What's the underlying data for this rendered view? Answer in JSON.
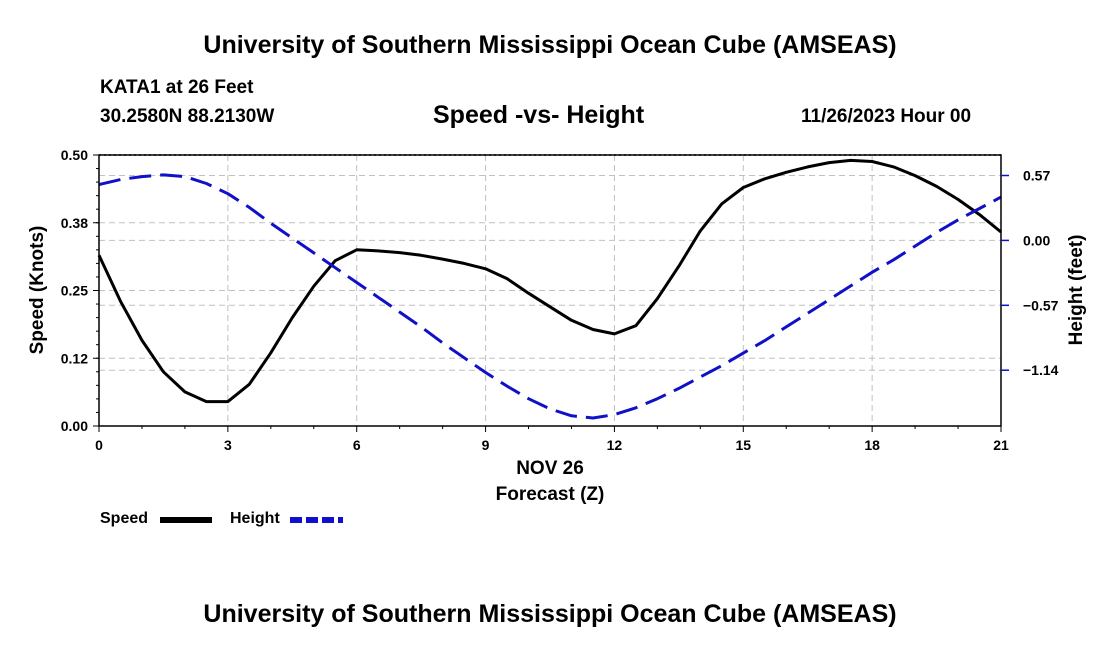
{
  "header": {
    "title": "University of Southern Mississippi Ocean Cube (AMSEAS)",
    "station": "KATA1 at 26 Feet",
    "coords": "30.2580N  88.2130W",
    "chart_title": "Speed -vs- Height",
    "datetime": "11/26/2023 Hour 00"
  },
  "footer": {
    "title": "University of Southern Mississippi Ocean Cube (AMSEAS)"
  },
  "legend": {
    "speed_label": "Speed",
    "height_label": "Height"
  },
  "colors": {
    "speed": "#000000",
    "height": "#1010c8",
    "grid": "#c0c0c0"
  },
  "chart_data": {
    "type": "line",
    "title": "Speed -vs- Height",
    "xlabel": "Forecast (Z)",
    "xlabel_date": "NOV 26",
    "ylabel": "Speed (Knots)",
    "y2label": "Height (feet)",
    "xlim": [
      0,
      21
    ],
    "ylim": [
      0,
      0.5
    ],
    "y2lim": [
      -1.63,
      0.75
    ],
    "x_ticks": [
      0,
      3,
      6,
      9,
      12,
      15,
      18,
      21
    ],
    "x_tick_labels": [
      "0",
      "3",
      "6",
      "9",
      "12",
      "15",
      "18",
      "21"
    ],
    "y_ticks": [
      0,
      0.125,
      0.25,
      0.375,
      0.5
    ],
    "y_tick_labels": [
      "0.00",
      "0.12",
      "0.25",
      "0.38",
      "0.50"
    ],
    "y2_ticks": [
      0.57,
      0,
      -0.57,
      -1.14
    ],
    "y2_tick_labels": [
      "0.57",
      "0.00",
      "−0.57",
      "−1.14"
    ],
    "legend_position": "bottom-left",
    "series": [
      {
        "name": "Speed",
        "axis": "left",
        "style": "solid",
        "x": [
          0,
          0.5,
          1,
          1.5,
          2,
          2.5,
          3,
          3.5,
          4,
          4.5,
          5,
          5.5,
          6,
          6.5,
          7,
          7.5,
          8,
          8.5,
          9,
          9.5,
          10,
          10.5,
          11,
          11.5,
          12,
          12.5,
          13,
          13.5,
          14,
          14.5,
          15,
          15.5,
          16,
          16.5,
          17,
          17.5,
          18,
          18.5,
          19,
          19.5,
          20,
          20.5,
          21
        ],
        "values": [
          0.315,
          0.23,
          0.158,
          0.1,
          0.063,
          0.045,
          0.045,
          0.077,
          0.135,
          0.2,
          0.258,
          0.305,
          0.325,
          0.323,
          0.32,
          0.315,
          0.308,
          0.3,
          0.29,
          0.272,
          0.245,
          0.22,
          0.195,
          0.178,
          0.17,
          0.185,
          0.235,
          0.295,
          0.36,
          0.41,
          0.44,
          0.456,
          0.468,
          0.478,
          0.486,
          0.49,
          0.488,
          0.478,
          0.462,
          0.442,
          0.418,
          0.39,
          0.358
        ]
      },
      {
        "name": "Height",
        "axis": "right",
        "style": "dashed",
        "x": [
          0,
          0.5,
          1,
          1.5,
          2,
          2.5,
          3,
          3.5,
          4,
          4.5,
          5,
          5.5,
          6,
          6.5,
          7,
          7.5,
          8,
          8.5,
          9,
          9.5,
          10,
          10.5,
          11,
          11.5,
          12,
          12.5,
          13,
          13.5,
          14,
          14.5,
          15,
          15.5,
          16,
          16.5,
          17,
          17.5,
          18,
          18.5,
          19,
          19.5,
          20,
          20.5,
          21
        ],
        "values": [
          0.49,
          0.535,
          0.56,
          0.575,
          0.56,
          0.5,
          0.41,
          0.29,
          0.15,
          0.02,
          -0.11,
          -0.24,
          -0.37,
          -0.5,
          -0.63,
          -0.76,
          -0.9,
          -1.03,
          -1.16,
          -1.28,
          -1.39,
          -1.48,
          -1.54,
          -1.56,
          -1.53,
          -1.47,
          -1.39,
          -1.3,
          -1.2,
          -1.1,
          -0.99,
          -0.88,
          -0.76,
          -0.64,
          -0.52,
          -0.4,
          -0.28,
          -0.17,
          -0.05,
          0.07,
          0.18,
          0.28,
          0.38
        ]
      }
    ]
  }
}
